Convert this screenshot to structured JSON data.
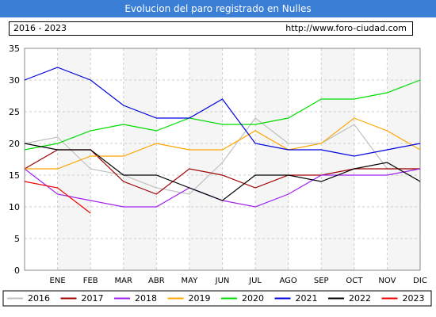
{
  "header": {
    "title": "Evolucion del paro registrado en Nulles"
  },
  "info": {
    "range": "2016 - 2023",
    "url": "http://www.foro-ciudad.com"
  },
  "colors": {
    "title_bg": "#3a7fd5",
    "plot_bg": "#f5f5f5"
  },
  "chart_data": {
    "type": "line",
    "categories": [
      "",
      "ENE",
      "FEB",
      "MAR",
      "ABR",
      "MAY",
      "JUN",
      "JUL",
      "AGO",
      "SEP",
      "OCT",
      "NOV",
      "DIC"
    ],
    "ylim": [
      0,
      35
    ],
    "yticks": [
      0,
      5,
      10,
      15,
      20,
      25,
      30,
      35
    ],
    "grid": true,
    "legend_position": "bottom",
    "series": [
      {
        "name": "2016",
        "color": "#c0c0c0",
        "values": [
          20,
          21,
          16,
          15,
          13,
          12,
          17,
          24,
          20,
          20,
          23,
          16,
          16
        ]
      },
      {
        "name": "2017",
        "color": "#a00000",
        "values": [
          16,
          19,
          19,
          14,
          12,
          16,
          15,
          13,
          15,
          15,
          16,
          16,
          16
        ]
      },
      {
        "name": "2018",
        "color": "#a020f0",
        "values": [
          16,
          12,
          11,
          10,
          10,
          13,
          11,
          10,
          12,
          15,
          15,
          15,
          16
        ]
      },
      {
        "name": "2019",
        "color": "#ffa500",
        "values": [
          16,
          16,
          18,
          18,
          20,
          19,
          19,
          22,
          19,
          20,
          24,
          22,
          19
        ]
      },
      {
        "name": "2020",
        "color": "#00dd00",
        "values": [
          19,
          20,
          22,
          23,
          22,
          24,
          23,
          23,
          24,
          27,
          27,
          28,
          30
        ]
      },
      {
        "name": "2021",
        "color": "#0000dd",
        "values": [
          30,
          32,
          30,
          26,
          24,
          24,
          27,
          20,
          19,
          19,
          18,
          19,
          20
        ]
      },
      {
        "name": "2022",
        "color": "#000000",
        "values": [
          20,
          19,
          19,
          15,
          15,
          13,
          11,
          15,
          15,
          14,
          16,
          17,
          14
        ]
      },
      {
        "name": "2023",
        "color": "#ee0000",
        "values": [
          14,
          13,
          9,
          null,
          null,
          null,
          null,
          null,
          null,
          null,
          null,
          null,
          null
        ]
      }
    ]
  }
}
